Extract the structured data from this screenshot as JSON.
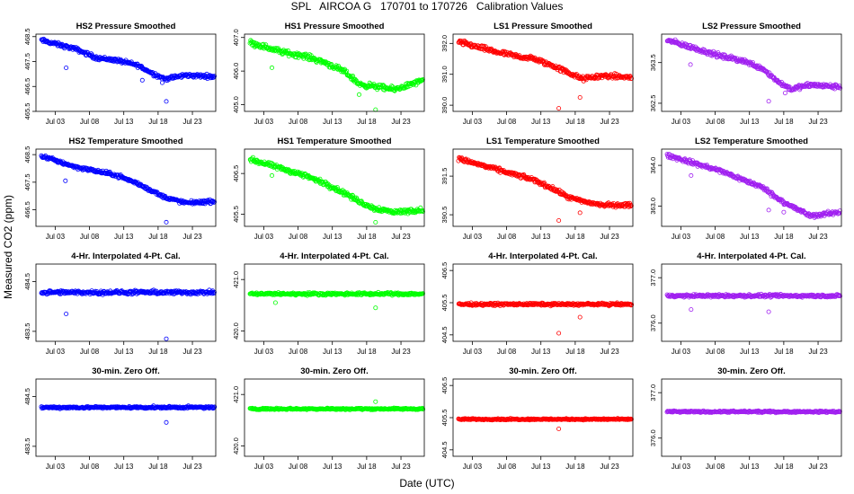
{
  "figure": {
    "title": "SPL   AIRCOA G   170701 to 170726   Calibration Values",
    "xlabel": "Date (UTC)",
    "ylabel": "Measured CO2 (ppm)"
  },
  "chart_data": [
    {
      "type": "scatter",
      "title": "HS2 Pressure Smoothed",
      "color": "#0000ff",
      "ylim": [
        465.5,
        468.6
      ],
      "yticks": [
        "465.5",
        "466.5",
        "467.5",
        "468.5"
      ],
      "trend": [
        [
          1,
          468.35
        ],
        [
          6,
          468.0
        ],
        [
          9,
          467.65
        ],
        [
          12,
          467.55
        ],
        [
          15,
          467.35
        ],
        [
          17,
          467.05
        ],
        [
          19,
          466.8
        ],
        [
          22,
          466.95
        ],
        [
          26,
          466.9
        ]
      ],
      "noise": 0.12,
      "outliers": [
        [
          4.6,
          467.25
        ],
        [
          15.7,
          466.75
        ],
        [
          18.6,
          466.65
        ],
        [
          19.2,
          465.9
        ]
      ],
      "xticks": [
        "Jul 03",
        "Jul 08",
        "Jul 13",
        "Jul 18",
        "Jul 23"
      ]
    },
    {
      "type": "scatter",
      "title": "HS1 Pressure Smoothed",
      "color": "#00ff00",
      "ylim": [
        404.8,
        407.1
      ],
      "yticks": [
        "405.0",
        "406.0",
        "407.0"
      ],
      "trend": [
        [
          1,
          406.85
        ],
        [
          6,
          406.55
        ],
        [
          9,
          406.45
        ],
        [
          12,
          406.25
        ],
        [
          15,
          405.95
        ],
        [
          17,
          405.6
        ],
        [
          19,
          405.55
        ],
        [
          22,
          405.45
        ],
        [
          26,
          405.7
        ]
      ],
      "noise": 0.12,
      "outliers": [
        [
          4.2,
          406.1
        ],
        [
          16.9,
          405.3
        ],
        [
          19.3,
          404.85
        ]
      ],
      "xticks": [
        "Jul 03",
        "Jul 08",
        "Jul 13",
        "Jul 18",
        "Jul 23"
      ]
    },
    {
      "type": "scatter",
      "title": "LS1 Pressure Smoothed",
      "color": "#ff0000",
      "ylim": [
        389.8,
        392.3
      ],
      "yticks": [
        "390.0",
        "391.0",
        "392.0"
      ],
      "trend": [
        [
          1,
          392.05
        ],
        [
          6,
          391.75
        ],
        [
          9,
          391.6
        ],
        [
          12,
          391.5
        ],
        [
          15,
          391.25
        ],
        [
          17,
          391.05
        ],
        [
          19,
          390.85
        ],
        [
          22,
          390.95
        ],
        [
          26,
          390.9
        ]
      ],
      "noise": 0.12,
      "outliers": [
        [
          15.6,
          389.9
        ],
        [
          18.7,
          390.25
        ]
      ],
      "xticks": [
        "Jul 03",
        "Jul 08",
        "Jul 13",
        "Jul 18",
        "Jul 23"
      ]
    },
    {
      "type": "scatter",
      "title": "LS2 Pressure Smoothed",
      "color": "#a020f0",
      "ylim": [
        362.3,
        364.2
      ],
      "yticks": [
        "362.5",
        "363.5"
      ],
      "trend": [
        [
          1,
          364.05
        ],
        [
          6,
          363.8
        ],
        [
          9,
          363.65
        ],
        [
          12,
          363.55
        ],
        [
          15,
          363.35
        ],
        [
          17,
          363.05
        ],
        [
          19,
          362.85
        ],
        [
          22,
          362.95
        ],
        [
          26,
          362.9
        ]
      ],
      "noise": 0.09,
      "outliers": [
        [
          4.4,
          363.45
        ],
        [
          15.8,
          362.55
        ],
        [
          18.2,
          362.75
        ]
      ],
      "xticks": [
        "Jul 03",
        "Jul 08",
        "Jul 13",
        "Jul 18",
        "Jul 23"
      ]
    },
    {
      "type": "scatter",
      "title": "HS2 Temperature Smoothed",
      "color": "#0000ff",
      "ylim": [
        465.9,
        468.7
      ],
      "yticks": [
        "466.5",
        "467.5",
        "468.5"
      ],
      "trend": [
        [
          1,
          468.45
        ],
        [
          6,
          468.05
        ],
        [
          9,
          467.9
        ],
        [
          12,
          467.75
        ],
        [
          15,
          467.45
        ],
        [
          17,
          467.2
        ],
        [
          19,
          466.95
        ],
        [
          22,
          466.75
        ],
        [
          26,
          466.8
        ]
      ],
      "noise": 0.1,
      "outliers": [
        [
          4.5,
          467.55
        ],
        [
          19.2,
          466.05
        ]
      ],
      "xticks": [
        "Jul 03",
        "Jul 08",
        "Jul 13",
        "Jul 18",
        "Jul 23"
      ]
    },
    {
      "type": "scatter",
      "title": "HS1 Temperature Smoothed",
      "color": "#00ff00",
      "ylim": [
        405.2,
        407.1
      ],
      "yticks": [
        "405.5",
        "406.5"
      ],
      "trend": [
        [
          1,
          406.85
        ],
        [
          6,
          406.6
        ],
        [
          9,
          406.45
        ],
        [
          12,
          406.25
        ],
        [
          15,
          406.0
        ],
        [
          17,
          405.8
        ],
        [
          19,
          405.65
        ],
        [
          22,
          405.55
        ],
        [
          26,
          405.6
        ]
      ],
      "noise": 0.09,
      "outliers": [
        [
          4.2,
          406.45
        ],
        [
          19.3,
          405.3
        ]
      ],
      "xticks": [
        "Jul 03",
        "Jul 08",
        "Jul 13",
        "Jul 18",
        "Jul 23"
      ]
    },
    {
      "type": "scatter",
      "title": "LS1 Temperature Smoothed",
      "color": "#ff0000",
      "ylim": [
        390.2,
        392.2
      ],
      "yticks": [
        "390.5",
        "391.5"
      ],
      "trend": [
        [
          1,
          391.95
        ],
        [
          6,
          391.7
        ],
        [
          9,
          391.55
        ],
        [
          12,
          391.4
        ],
        [
          15,
          391.15
        ],
        [
          17,
          390.95
        ],
        [
          19,
          390.85
        ],
        [
          22,
          390.75
        ],
        [
          26,
          390.75
        ]
      ],
      "noise": 0.08,
      "outliers": [
        [
          15.6,
          390.35
        ],
        [
          18.7,
          390.55
        ]
      ],
      "xticks": [
        "Jul 03",
        "Jul 08",
        "Jul 13",
        "Jul 18",
        "Jul 23"
      ]
    },
    {
      "type": "scatter",
      "title": "LS2 Temperature Smoothed",
      "color": "#a020f0",
      "ylim": [
        362.5,
        364.4
      ],
      "yticks": [
        "363.0",
        "364.0"
      ],
      "trend": [
        [
          1,
          364.25
        ],
        [
          6,
          364.0
        ],
        [
          9,
          363.85
        ],
        [
          12,
          363.65
        ],
        [
          15,
          363.45
        ],
        [
          17,
          363.2
        ],
        [
          19,
          363.0
        ],
        [
          22,
          362.75
        ],
        [
          26,
          362.85
        ]
      ],
      "noise": 0.08,
      "outliers": [
        [
          4.5,
          363.75
        ],
        [
          15.8,
          362.9
        ],
        [
          18.0,
          362.85
        ]
      ],
      "xticks": [
        "Jul 03",
        "Jul 08",
        "Jul 13",
        "Jul 18",
        "Jul 23"
      ]
    },
    {
      "type": "scatter",
      "title": "4-Hr. Interpolated 4-Pt. Cal.",
      "color": "#0000ff",
      "ylim": [
        483.3,
        484.85
      ],
      "yticks": [
        "483.5",
        "484.5"
      ],
      "trend": [
        [
          1,
          484.28
        ],
        [
          26,
          484.28
        ]
      ],
      "noise": 0.06,
      "outliers": [
        [
          4.6,
          483.85
        ],
        [
          19.2,
          483.35
        ]
      ],
      "xticks": [
        "Jul 03",
        "Jul 08",
        "Jul 13",
        "Jul 18",
        "Jul 23"
      ]
    },
    {
      "type": "scatter",
      "title": "4-Hr. Interpolated 4-Pt. Cal.",
      "color": "#00ff00",
      "ylim": [
        419.8,
        421.3
      ],
      "yticks": [
        "420.0",
        "421.0"
      ],
      "trend": [
        [
          1,
          420.72
        ],
        [
          26,
          420.72
        ]
      ],
      "noise": 0.04,
      "outliers": [
        [
          4.7,
          420.55
        ],
        [
          19.3,
          420.45
        ]
      ],
      "xticks": [
        "Jul 03",
        "Jul 08",
        "Jul 13",
        "Jul 18",
        "Jul 23"
      ]
    },
    {
      "type": "scatter",
      "title": "4-Hr. Interpolated 4-Pt. Cal.",
      "color": "#ff0000",
      "ylim": [
        404.3,
        406.7
      ],
      "yticks": [
        "404.5",
        "405.5",
        "406.5"
      ],
      "trend": [
        [
          1,
          405.45
        ],
        [
          26,
          405.45
        ]
      ],
      "noise": 0.06,
      "outliers": [
        [
          15.6,
          404.55
        ],
        [
          18.7,
          405.05
        ]
      ],
      "xticks": [
        "Jul 03",
        "Jul 08",
        "Jul 13",
        "Jul 18",
        "Jul 23"
      ]
    },
    {
      "type": "scatter",
      "title": "4-Hr. Interpolated 4-Pt. Cal.",
      "color": "#a020f0",
      "ylim": [
        375.6,
        377.3
      ],
      "yticks": [
        "376.0",
        "377.0"
      ],
      "trend": [
        [
          1,
          376.6
        ],
        [
          26,
          376.6
        ]
      ],
      "noise": 0.05,
      "outliers": [
        [
          4.5,
          376.3
        ],
        [
          15.8,
          376.25
        ]
      ],
      "xticks": [
        "Jul 03",
        "Jul 08",
        "Jul 13",
        "Jul 18",
        "Jul 23"
      ]
    },
    {
      "type": "scatter",
      "title": "30-min. Zero Off.",
      "color": "#0000ff",
      "ylim": [
        483.3,
        484.85
      ],
      "yticks": [
        "483.5",
        "484.5"
      ],
      "trend": [
        [
          1,
          484.28
        ],
        [
          26,
          484.28
        ]
      ],
      "noise": 0.035,
      "outliers": [
        [
          19.2,
          483.98
        ]
      ],
      "xticks": [
        "Jul 03",
        "Jul 08",
        "Jul 13",
        "Jul 18",
        "Jul 23"
      ]
    },
    {
      "type": "scatter",
      "title": "30-min. Zero Off.",
      "color": "#00ff00",
      "ylim": [
        419.8,
        421.3
      ],
      "yticks": [
        "420.0",
        "421.0"
      ],
      "trend": [
        [
          1,
          420.72
        ],
        [
          26,
          420.72
        ]
      ],
      "noise": 0.025,
      "outliers": [
        [
          19.3,
          420.86
        ]
      ],
      "xticks": [
        "Jul 03",
        "Jul 08",
        "Jul 13",
        "Jul 18",
        "Jul 23"
      ]
    },
    {
      "type": "scatter",
      "title": "30-min. Zero Off.",
      "color": "#ff0000",
      "ylim": [
        404.3,
        406.7
      ],
      "yticks": [
        "404.5",
        "405.5",
        "406.5"
      ],
      "trend": [
        [
          1,
          405.45
        ],
        [
          26,
          405.45
        ]
      ],
      "noise": 0.035,
      "outliers": [
        [
          15.6,
          405.15
        ]
      ],
      "xticks": [
        "Jul 03",
        "Jul 08",
        "Jul 13",
        "Jul 18",
        "Jul 23"
      ]
    },
    {
      "type": "scatter",
      "title": "30-min. Zero Off.",
      "color": "#a020f0",
      "ylim": [
        375.6,
        377.3
      ],
      "yticks": [
        "376.0",
        "377.0"
      ],
      "trend": [
        [
          1,
          376.58
        ],
        [
          26,
          376.58
        ]
      ],
      "noise": 0.03,
      "outliers": [],
      "xticks": [
        "Jul 03",
        "Jul 08",
        "Jul 13",
        "Jul 18",
        "Jul 23"
      ]
    }
  ],
  "x_axis": {
    "xlim": [
      0.2,
      26.4
    ],
    "tick_positions": [
      3,
      8,
      13,
      18,
      23
    ]
  }
}
